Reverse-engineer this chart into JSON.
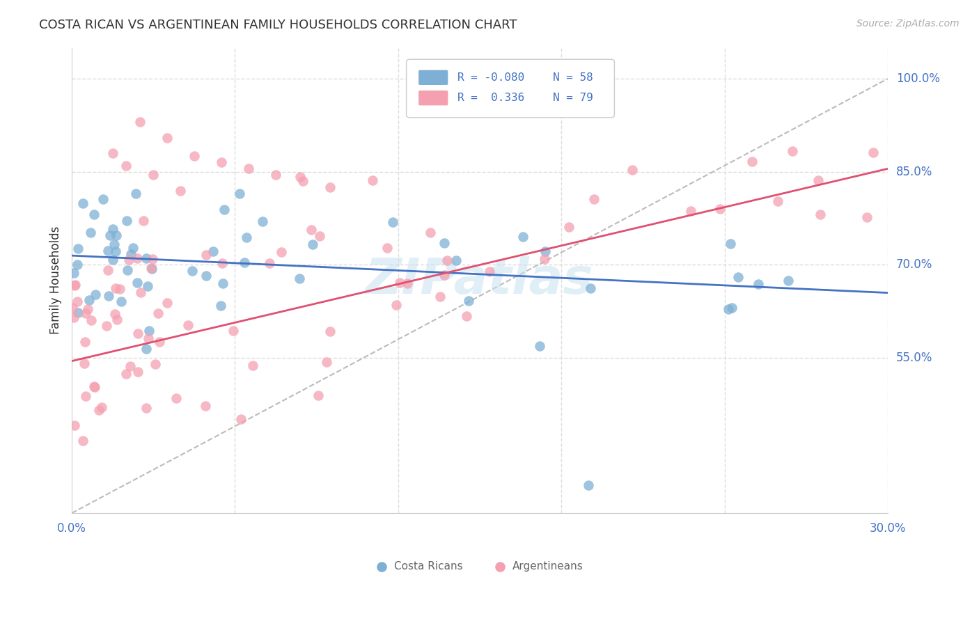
{
  "title": "COSTA RICAN VS ARGENTINEAN FAMILY HOUSEHOLDS CORRELATION CHART",
  "source": "Source: ZipAtlas.com",
  "ylabel": "Family Households",
  "yticks": [
    "55.0%",
    "70.0%",
    "85.0%",
    "100.0%"
  ],
  "ytick_vals": [
    0.55,
    0.7,
    0.85,
    1.0
  ],
  "xlim": [
    0.0,
    0.3
  ],
  "ylim": [
    0.3,
    1.05
  ],
  "watermark": "ZIPatlas",
  "legend_R_blue": "-0.080",
  "legend_N_blue": "58",
  "legend_R_pink": "0.336",
  "legend_N_pink": "79",
  "blue_color": "#7EB0D5",
  "pink_color": "#F4A0B0",
  "blue_line_color": "#4472C4",
  "pink_line_color": "#E05070",
  "diag_line_color": "#BBBBBB",
  "text_color": "#4472C4",
  "grid_color": "#DDDDDD",
  "bottom_legend_color": "#666666"
}
